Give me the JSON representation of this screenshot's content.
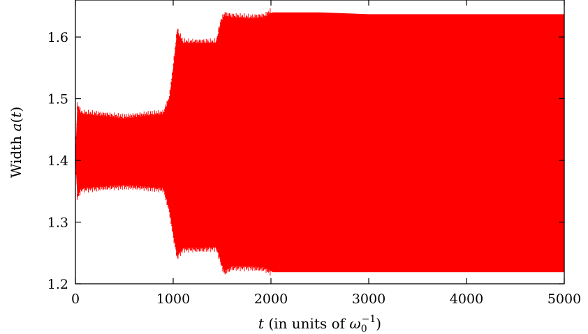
{
  "chart_data": {
    "type": "area",
    "title": "",
    "xlabel": "t (in units of ω0⁻¹)",
    "xlabel_parts": {
      "var": "t",
      "text": " (in units of ",
      "omega": "ω",
      "sub": "0",
      "sup": "−1",
      "close": ")"
    },
    "ylabel": "Width a(t)",
    "ylabel_parts": {
      "word": "Width ",
      "func": "a",
      "open": "(",
      "arg": "t",
      "close": ")"
    },
    "xlim": [
      0,
      5000
    ],
    "ylim": [
      1.2,
      1.66
    ],
    "xticks": [
      0,
      1000,
      2000,
      3000,
      4000,
      5000
    ],
    "xtick_labels": [
      "0",
      "1000",
      "2000",
      "3000",
      "4000",
      "5000"
    ],
    "yticks": [
      1.2,
      1.3,
      1.4,
      1.5,
      1.6
    ],
    "ytick_labels": [
      "1.2",
      "1.3",
      "1.4",
      "1.5",
      "1.6"
    ],
    "grid": false,
    "series": [
      {
        "color": "#ff0000",
        "envelope": {
          "t": [
            0,
            20,
            60,
            300,
            500,
            700,
            900,
            960,
            1000,
            1040,
            1100,
            1300,
            1440,
            1480,
            1520,
            1600,
            1800,
            1940,
            1980,
            2020,
            2300,
            2500,
            3000,
            4000,
            5000
          ],
          "upper": [
            1.41,
            1.49,
            1.475,
            1.472,
            1.468,
            1.472,
            1.475,
            1.5,
            1.55,
            1.61,
            1.59,
            1.59,
            1.59,
            1.62,
            1.635,
            1.632,
            1.63,
            1.632,
            1.638,
            1.64,
            1.64,
            1.64,
            1.637,
            1.637,
            1.637
          ],
          "lower": [
            1.4,
            1.34,
            1.355,
            1.358,
            1.36,
            1.358,
            1.355,
            1.32,
            1.28,
            1.245,
            1.258,
            1.258,
            1.26,
            1.24,
            1.22,
            1.228,
            1.228,
            1.226,
            1.222,
            1.219,
            1.219,
            1.219,
            1.219,
            1.219,
            1.219
          ]
        }
      }
    ]
  }
}
